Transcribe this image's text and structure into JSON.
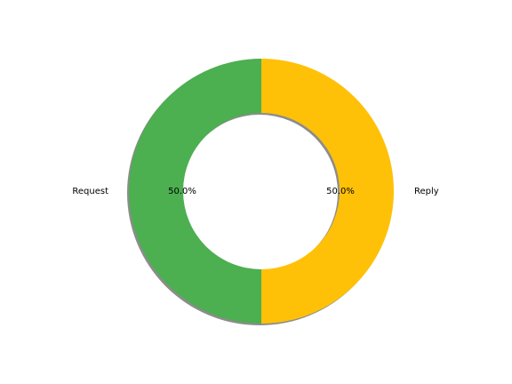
{
  "chart_data": {
    "type": "pie",
    "donut": true,
    "shadow": true,
    "start_angle_deg": 90,
    "direction": "clockwise",
    "categories": [
      "Reply",
      "Request"
    ],
    "values": [
      50.0,
      50.0
    ],
    "percent_labels": [
      "50.0%",
      "50.0%"
    ],
    "colors": [
      "#FFC107",
      "#4CAF50"
    ],
    "title": "",
    "legend": "none"
  }
}
